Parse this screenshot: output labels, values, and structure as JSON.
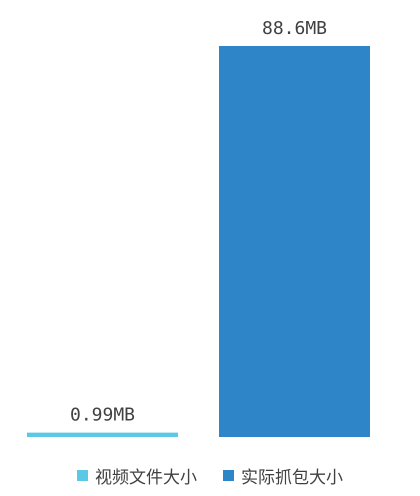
{
  "chart_data": {
    "type": "bar",
    "categories": [
      "视频文件大小",
      "实际抓包大小"
    ],
    "values": [
      0.99,
      88.6
    ],
    "unit": "MB",
    "data_labels": [
      "0.99MB",
      "88.6MB"
    ],
    "colors": [
      "#5bc8e5",
      "#2e86c8"
    ],
    "legend": {
      "placement": "bottom",
      "items": [
        {
          "label": "视频文件大小",
          "color": "#5bc8e5"
        },
        {
          "label": "实际抓包大小",
          "color": "#2e86c8"
        }
      ]
    },
    "ylim": [
      0,
      88.6
    ],
    "grid": false
  }
}
